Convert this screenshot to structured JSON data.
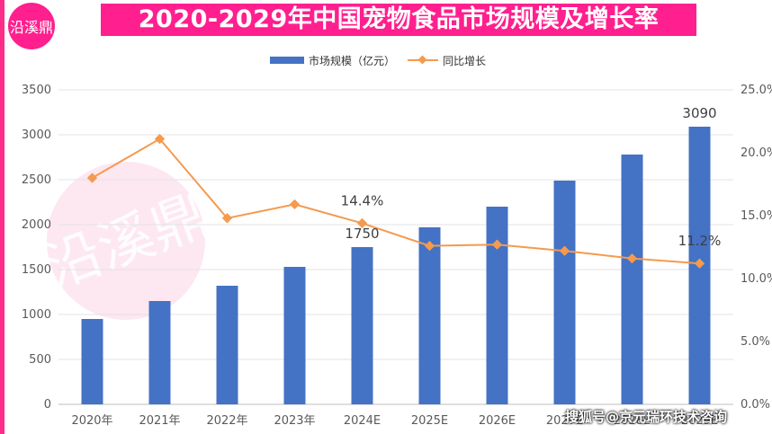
{
  "title": "2020-2029年中国宠物食品市场规模及增长率",
  "logo_text": "沿溪鼎",
  "watermark_text": "沿溪鼎",
  "source": "搜狐号@京元瑞环技术咨询",
  "colors": {
    "accent": "#ff1f8e",
    "bar": "#4472c4",
    "line": "#f59a4e"
  },
  "chart_data": {
    "type": "bar",
    "categories": [
      "2020年",
      "2021年",
      "2022年",
      "2023年",
      "2024E",
      "2025E",
      "2026E",
      "2027E",
      "2028E",
      "2029E"
    ],
    "series": [
      {
        "name": "市场规模（亿元）",
        "type": "bar",
        "axis": "left",
        "values": [
          950,
          1150,
          1320,
          1530,
          1750,
          1970,
          2200,
          2490,
          2780,
          3090
        ]
      },
      {
        "name": "同比增长",
        "type": "line",
        "axis": "right",
        "values": [
          18.0,
          21.1,
          14.8,
          15.9,
          14.4,
          12.6,
          12.7,
          12.2,
          11.6,
          11.2
        ]
      }
    ],
    "ylim": [
      0,
      3500
    ],
    "yticks": [
      "0",
      "500",
      "1000",
      "1500",
      "2000",
      "2500",
      "3000",
      "3500"
    ],
    "y2lim": [
      0,
      25
    ],
    "y2ticks": [
      "0.0%",
      "5.0%",
      "10.0%",
      "15.0%",
      "20.0%",
      "25.0%"
    ],
    "annotations": {
      "bar_labels": [
        {
          "index": 4,
          "text": "1750"
        },
        {
          "index": 9,
          "text": "3090"
        }
      ],
      "line_labels": [
        {
          "index": 4,
          "text": "14.4%"
        },
        {
          "index": 9,
          "text": "11.2%"
        }
      ]
    },
    "legend_position": "top-center",
    "grid": true
  }
}
